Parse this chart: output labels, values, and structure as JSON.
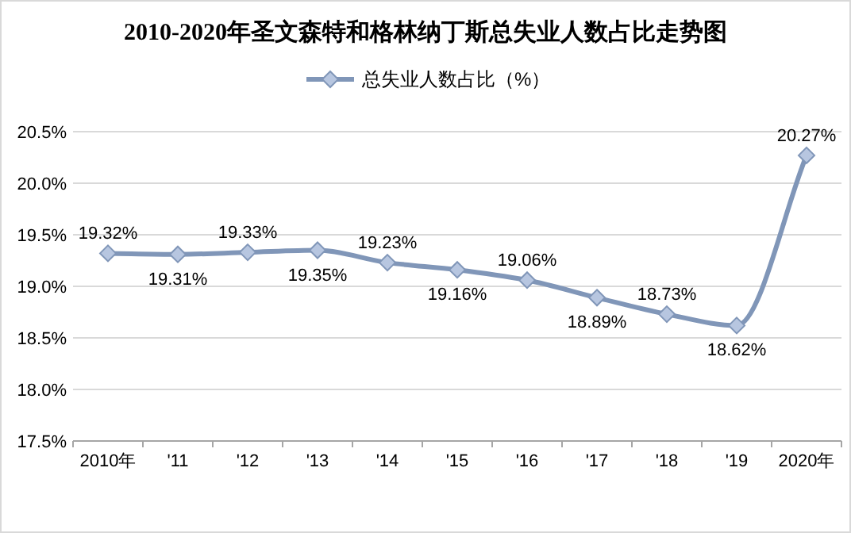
{
  "chart_data": {
    "type": "line",
    "title": "2010-2020年圣文森特和格林纳丁斯总失业人数占比走势图",
    "categories": [
      "2010年",
      "'11",
      "'12",
      "'13",
      "'14",
      "'15",
      "'16",
      "'17",
      "'18",
      "'19",
      "2020年"
    ],
    "series": [
      {
        "name": "总失业人数占比（%）",
        "color": "#8096b8",
        "values": [
          19.32,
          19.31,
          19.33,
          19.35,
          19.23,
          19.16,
          19.06,
          18.89,
          18.73,
          18.62,
          20.27
        ],
        "value_labels": [
          "19.32%",
          "19.31%",
          "19.33%",
          "19.35%",
          "19.23%",
          "19.16%",
          "19.06%",
          "18.89%",
          "18.73%",
          "18.62%",
          "20.27%"
        ]
      }
    ],
    "ylim": [
      17.5,
      20.5
    ],
    "yticks": [
      {
        "value": 17.5,
        "label": "17.5%"
      },
      {
        "value": 18.0,
        "label": "18.0%"
      },
      {
        "value": 18.5,
        "label": "18.5%"
      },
      {
        "value": 19.0,
        "label": "19.0%"
      },
      {
        "value": 19.5,
        "label": "19.5%"
      },
      {
        "value": 20.0,
        "label": "20.0%"
      },
      {
        "value": 20.5,
        "label": "20.5%"
      }
    ],
    "grid": "y",
    "legend": "top",
    "marker": "diamond",
    "line_style": "solid"
  }
}
